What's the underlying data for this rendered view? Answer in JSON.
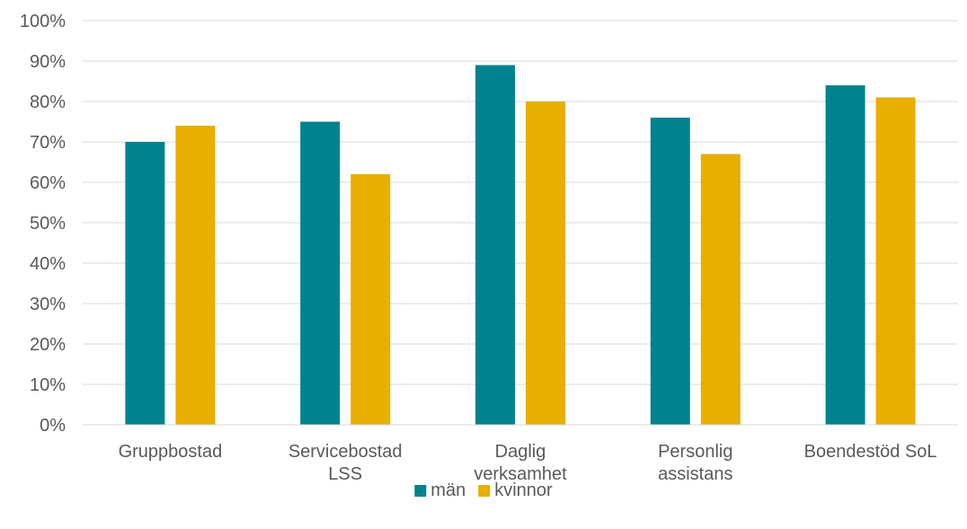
{
  "chart_data": {
    "type": "bar",
    "categories": [
      [
        "Gruppbostad"
      ],
      [
        "Servicebostad",
        "LSS"
      ],
      [
        "Daglig",
        "verksamhet"
      ],
      [
        "Personlig",
        "assistans"
      ],
      [
        "Boendestöd SoL"
      ]
    ],
    "series": [
      {
        "name": "män",
        "color": "#00838F",
        "values": [
          70,
          75,
          89,
          76,
          84
        ]
      },
      {
        "name": "kvinnor",
        "color": "#E8AE00",
        "values": [
          74,
          62,
          80,
          67,
          81
        ]
      }
    ],
    "ylim": [
      0,
      100
    ],
    "yticks": [
      "0%",
      "10%",
      "20%",
      "30%",
      "40%",
      "50%",
      "60%",
      "70%",
      "80%",
      "90%",
      "100%"
    ],
    "grid": true,
    "legend_position": "bottom-center",
    "title": "",
    "xlabel": "",
    "ylabel": ""
  }
}
